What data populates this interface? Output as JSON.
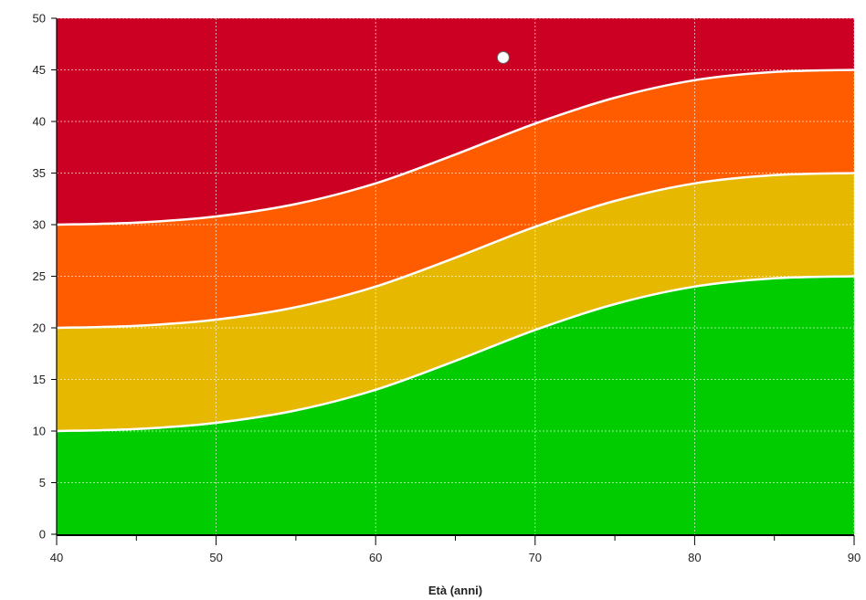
{
  "chart_data": {
    "type": "area",
    "title": "",
    "xlabel": "Età (anni)",
    "ylabel": "",
    "xlim": [
      40,
      90
    ],
    "ylim": [
      0,
      50
    ],
    "x_ticks": [
      40,
      50,
      60,
      70,
      80,
      90
    ],
    "x_minor_ticks": [
      45,
      55,
      65,
      75,
      85
    ],
    "y_ticks": [
      0,
      5,
      10,
      15,
      20,
      25,
      30,
      35,
      40,
      45,
      50
    ],
    "grid": true,
    "boundaries": [
      {
        "offset": 0,
        "points": [
          [
            40,
            10
          ],
          [
            45,
            10.2
          ],
          [
            50,
            10.8
          ],
          [
            55,
            12
          ],
          [
            60,
            14
          ],
          [
            65,
            16.8
          ],
          [
            70,
            19.8
          ],
          [
            75,
            22.3
          ],
          [
            80,
            24
          ],
          [
            85,
            24.8
          ],
          [
            90,
            25
          ]
        ]
      },
      {
        "offset": 10,
        "points": [
          [
            40,
            20
          ],
          [
            45,
            20.2
          ],
          [
            50,
            20.8
          ],
          [
            55,
            22
          ],
          [
            60,
            24
          ],
          [
            65,
            26.8
          ],
          [
            70,
            29.8
          ],
          [
            75,
            32.3
          ],
          [
            80,
            34
          ],
          [
            85,
            34.8
          ],
          [
            90,
            35
          ]
        ]
      },
      {
        "offset": 20,
        "points": [
          [
            40,
            30
          ],
          [
            45,
            30.2
          ],
          [
            50,
            30.8
          ],
          [
            55,
            32
          ],
          [
            60,
            34
          ],
          [
            65,
            36.8
          ],
          [
            70,
            39.8
          ],
          [
            75,
            42.3
          ],
          [
            80,
            44
          ],
          [
            85,
            44.8
          ],
          [
            90,
            45
          ]
        ]
      }
    ],
    "bands": [
      {
        "color": "#00cc00"
      },
      {
        "color": "#e6b800"
      },
      {
        "color": "#ff5c00"
      },
      {
        "color": "#cc0022"
      }
    ],
    "points": [
      {
        "x": 68,
        "y": 46.2
      }
    ],
    "boundary_color": "#ffffff",
    "grid_color": "#ffffff",
    "point_color": "#ffffff"
  }
}
